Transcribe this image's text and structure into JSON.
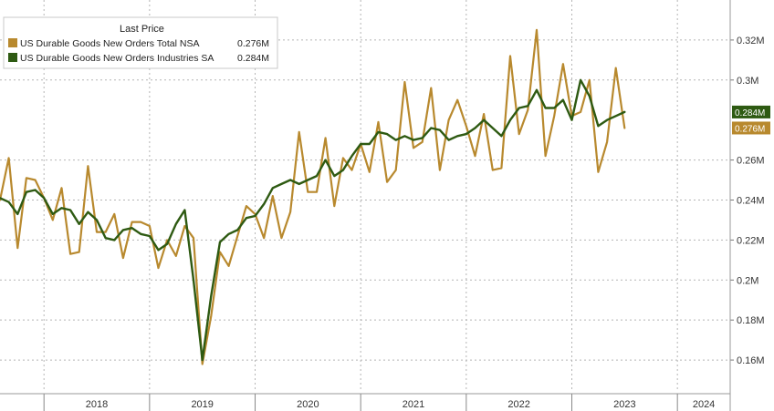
{
  "chart_data": {
    "type": "line",
    "legend": {
      "title": "Last Price",
      "placement": "top-left",
      "entries": [
        {
          "name": "US Durable Goods New Orders Total NSA",
          "last": "0.276M",
          "color": "#b8892e"
        },
        {
          "name": "US Durable Goods New Orders Industries SA",
          "last": "0.284M",
          "color": "#2e5a12"
        }
      ]
    },
    "y_axis": {
      "position": "right",
      "range": [
        0.145,
        0.34
      ],
      "ticks": [
        {
          "value": 0.16,
          "label": "0.16M"
        },
        {
          "value": 0.18,
          "label": "0.18M"
        },
        {
          "value": 0.2,
          "label": "0.2M"
        },
        {
          "value": 0.22,
          "label": "0.22M"
        },
        {
          "value": 0.24,
          "label": "0.24M"
        },
        {
          "value": 0.26,
          "label": "0.26M"
        },
        {
          "value": 0.3,
          "label": "0.3M"
        },
        {
          "value": 0.32,
          "label": "0.32M"
        }
      ]
    },
    "x_axis": {
      "range": [
        "2017-08",
        "2024-07"
      ],
      "years": [
        {
          "label": "2018",
          "start": "2018-01"
        },
        {
          "label": "2019",
          "start": "2019-01"
        },
        {
          "label": "2020",
          "start": "2020-01"
        },
        {
          "label": "2021",
          "start": "2021-01"
        },
        {
          "label": "2022",
          "start": "2022-01"
        },
        {
          "label": "2023",
          "start": "2023-01"
        },
        {
          "label": "2024",
          "start": "2024-01"
        }
      ]
    },
    "grid": true,
    "series": [
      {
        "name": "US Durable Goods New Orders Total NSA",
        "color": "#b8892e",
        "points": [
          [
            "2017-08",
            0.24
          ],
          [
            "2017-09",
            0.261
          ],
          [
            "2017-10",
            0.216
          ],
          [
            "2017-11",
            0.251
          ],
          [
            "2017-12",
            0.25
          ],
          [
            "2018-01",
            0.241
          ],
          [
            "2018-02",
            0.23
          ],
          [
            "2018-03",
            0.246
          ],
          [
            "2018-04",
            0.213
          ],
          [
            "2018-05",
            0.214
          ],
          [
            "2018-06",
            0.257
          ],
          [
            "2018-07",
            0.224
          ],
          [
            "2018-08",
            0.224
          ],
          [
            "2018-09",
            0.233
          ],
          [
            "2018-10",
            0.211
          ],
          [
            "2018-11",
            0.229
          ],
          [
            "2018-12",
            0.229
          ],
          [
            "2019-01",
            0.227
          ],
          [
            "2019-02",
            0.206
          ],
          [
            "2019-03",
            0.22
          ],
          [
            "2019-04",
            0.212
          ],
          [
            "2019-05",
            0.227
          ],
          [
            "2019-06",
            0.221
          ],
          [
            "2019-07",
            0.158
          ],
          [
            "2019-08",
            0.182
          ],
          [
            "2019-09",
            0.214
          ],
          [
            "2019-10",
            0.207
          ],
          [
            "2019-11",
            0.222
          ],
          [
            "2019-12",
            0.237
          ],
          [
            "2020-01",
            0.233
          ],
          [
            "2020-02",
            0.221
          ],
          [
            "2020-03",
            0.242
          ],
          [
            "2020-04",
            0.221
          ],
          [
            "2020-05",
            0.234
          ],
          [
            "2020-06",
            0.274
          ],
          [
            "2020-07",
            0.244
          ],
          [
            "2020-08",
            0.244
          ],
          [
            "2020-09",
            0.271
          ],
          [
            "2020-10",
            0.237
          ],
          [
            "2020-11",
            0.261
          ],
          [
            "2020-12",
            0.255
          ],
          [
            "2021-01",
            0.268
          ],
          [
            "2021-02",
            0.254
          ],
          [
            "2021-03",
            0.279
          ],
          [
            "2021-04",
            0.249
          ],
          [
            "2021-05",
            0.255
          ],
          [
            "2021-06",
            0.299
          ],
          [
            "2021-07",
            0.266
          ],
          [
            "2021-08",
            0.269
          ],
          [
            "2021-09",
            0.296
          ],
          [
            "2021-10",
            0.255
          ],
          [
            "2021-11",
            0.28
          ],
          [
            "2021-12",
            0.29
          ],
          [
            "2022-01",
            0.277
          ],
          [
            "2022-02",
            0.262
          ],
          [
            "2022-03",
            0.283
          ],
          [
            "2022-04",
            0.255
          ],
          [
            "2022-05",
            0.256
          ],
          [
            "2022-06",
            0.312
          ],
          [
            "2022-07",
            0.273
          ],
          [
            "2022-08",
            0.285
          ],
          [
            "2022-09",
            0.325
          ],
          [
            "2022-10",
            0.262
          ],
          [
            "2022-11",
            0.282
          ],
          [
            "2022-12",
            0.308
          ],
          [
            "2023-01",
            0.282
          ],
          [
            "2023-02",
            0.284
          ],
          [
            "2023-03",
            0.3
          ],
          [
            "2023-04",
            0.254
          ],
          [
            "2023-05",
            0.269
          ],
          [
            "2023-06",
            0.306
          ],
          [
            "2023-07",
            0.276
          ]
        ]
      },
      {
        "name": "US Durable Goods New Orders Industries SA",
        "color": "#2e5a12",
        "points": [
          [
            "2017-08",
            0.241
          ],
          [
            "2017-09",
            0.239
          ],
          [
            "2017-10",
            0.233
          ],
          [
            "2017-11",
            0.244
          ],
          [
            "2017-12",
            0.245
          ],
          [
            "2018-01",
            0.241
          ],
          [
            "2018-02",
            0.233
          ],
          [
            "2018-03",
            0.236
          ],
          [
            "2018-04",
            0.235
          ],
          [
            "2018-05",
            0.228
          ],
          [
            "2018-06",
            0.234
          ],
          [
            "2018-07",
            0.23
          ],
          [
            "2018-08",
            0.221
          ],
          [
            "2018-09",
            0.22
          ],
          [
            "2018-10",
            0.225
          ],
          [
            "2018-11",
            0.226
          ],
          [
            "2018-12",
            0.223
          ],
          [
            "2019-01",
            0.222
          ],
          [
            "2019-02",
            0.215
          ],
          [
            "2019-03",
            0.218
          ],
          [
            "2019-04",
            0.228
          ],
          [
            "2019-05",
            0.235
          ],
          [
            "2019-06",
            0.2
          ],
          [
            "2019-07",
            0.16
          ],
          [
            "2019-08",
            0.192
          ],
          [
            "2019-09",
            0.219
          ],
          [
            "2019-10",
            0.223
          ],
          [
            "2019-11",
            0.225
          ],
          [
            "2019-12",
            0.231
          ],
          [
            "2020-01",
            0.232
          ],
          [
            "2020-02",
            0.238
          ],
          [
            "2020-03",
            0.246
          ],
          [
            "2020-04",
            0.248
          ],
          [
            "2020-05",
            0.25
          ],
          [
            "2020-06",
            0.248
          ],
          [
            "2020-07",
            0.25
          ],
          [
            "2020-08",
            0.252
          ],
          [
            "2020-09",
            0.26
          ],
          [
            "2020-10",
            0.252
          ],
          [
            "2020-11",
            0.255
          ],
          [
            "2020-12",
            0.262
          ],
          [
            "2021-01",
            0.268
          ],
          [
            "2021-02",
            0.268
          ],
          [
            "2021-03",
            0.274
          ],
          [
            "2021-04",
            0.273
          ],
          [
            "2021-05",
            0.27
          ],
          [
            "2021-06",
            0.272
          ],
          [
            "2021-07",
            0.27
          ],
          [
            "2021-08",
            0.271
          ],
          [
            "2021-09",
            0.276
          ],
          [
            "2021-10",
            0.275
          ],
          [
            "2021-11",
            0.27
          ],
          [
            "2021-12",
            0.272
          ],
          [
            "2022-01",
            0.273
          ],
          [
            "2022-02",
            0.276
          ],
          [
            "2022-03",
            0.28
          ],
          [
            "2022-04",
            0.276
          ],
          [
            "2022-05",
            0.272
          ],
          [
            "2022-06",
            0.28
          ],
          [
            "2022-07",
            0.286
          ],
          [
            "2022-08",
            0.287
          ],
          [
            "2022-09",
            0.295
          ],
          [
            "2022-10",
            0.286
          ],
          [
            "2022-11",
            0.286
          ],
          [
            "2022-12",
            0.29
          ],
          [
            "2023-01",
            0.28
          ],
          [
            "2023-02",
            0.3
          ],
          [
            "2023-03",
            0.292
          ],
          [
            "2023-04",
            0.277
          ],
          [
            "2023-05",
            0.28
          ],
          [
            "2023-06",
            0.282
          ],
          [
            "2023-07",
            0.284
          ]
        ]
      }
    ]
  }
}
